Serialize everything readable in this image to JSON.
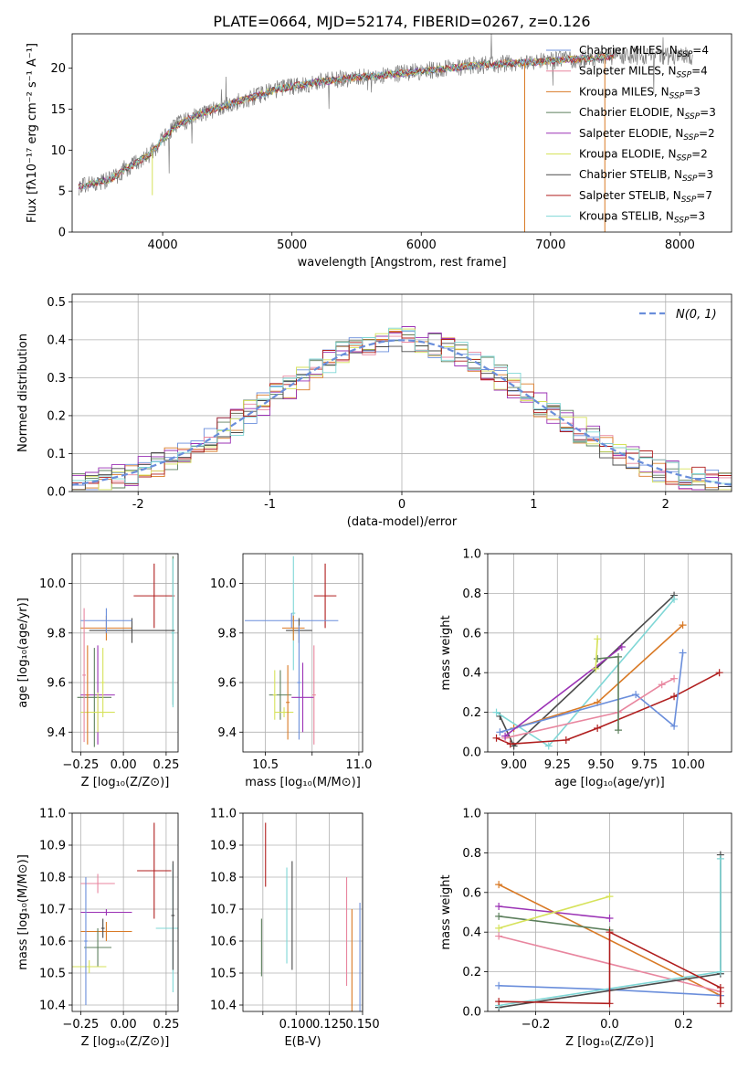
{
  "figure": {
    "title": "PLATE=0664, MJD=52174, FIBERID=0267, z=0.126"
  },
  "chart_data": [
    {
      "id": "spectrum",
      "type": "line",
      "xlabel": "wavelength [Angstrom, rest frame]",
      "ylabel": "Flux [fλ10⁻¹⁷ erg cm⁻² s⁻¹ A⁻¹]",
      "xlim": [
        3300,
        8400
      ],
      "ylim": [
        0,
        24.2
      ],
      "xticks": [
        4000,
        5000,
        6000,
        7000,
        8000
      ],
      "yticks": [
        0,
        5,
        10,
        15,
        20
      ],
      "grid": false,
      "legend_position": "top-right",
      "continuum": {
        "x": [
          3350,
          3600,
          3900,
          4100,
          4300,
          4600,
          4900,
          5200,
          5500,
          5800,
          6100,
          6400,
          6700,
          7000,
          7300,
          7500
        ],
        "y": [
          5.5,
          6.5,
          9.5,
          13.0,
          14.5,
          16.0,
          17.5,
          18.3,
          18.9,
          19.3,
          19.8,
          20.3,
          20.6,
          20.9,
          21.2,
          21.5
        ]
      },
      "series": [
        {
          "name": "Chabrier MILES, N",
          "sub": "SSP",
          "tail": "=4",
          "color": "#6a8edb"
        },
        {
          "name": "Salpeter MILES, N",
          "sub": "SSP",
          "tail": "=4",
          "color": "#e8869f"
        },
        {
          "name": "Kroupa MILES, N",
          "sub": "SSP",
          "tail": "=3",
          "color": "#d97a26"
        },
        {
          "name": "Chabrier ELODIE, N",
          "sub": "SSP",
          "tail": "=3",
          "color": "#5c7f5c"
        },
        {
          "name": "Salpeter ELODIE, N",
          "sub": "SSP",
          "tail": "=2",
          "color": "#9b32b5"
        },
        {
          "name": "Kroupa ELODIE, N",
          "sub": "SSP",
          "tail": "=2",
          "color": "#d6e25a"
        },
        {
          "name": "Chabrier STELIB, N",
          "sub": "SSP",
          "tail": "=3",
          "color": "#4a4a4a"
        },
        {
          "name": "Salpeter STELIB, N",
          "sub": "SSP",
          "tail": "=7",
          "color": "#b01e1e"
        },
        {
          "name": "Kroupa STELIB, N",
          "sub": "SSP",
          "tail": "=3",
          "color": "#7fd7d6"
        }
      ]
    },
    {
      "id": "residuals",
      "type": "step",
      "xlabel": "(data-model)/error",
      "ylabel": "Normed distribution",
      "xlim": [
        -2.5,
        2.5
      ],
      "ylim": [
        0,
        0.52
      ],
      "xticks": [
        -2,
        -1,
        0,
        1,
        2
      ],
      "yticks": [
        0.0,
        0.1,
        0.2,
        0.3,
        0.4,
        0.5
      ],
      "grid": true,
      "legend_position": "top-right",
      "reference_label": "N(0, 1)",
      "reference_color": "#6a8edb"
    },
    {
      "id": "age-vs-Z",
      "type": "scatter",
      "xlabel": "Z [log₁₀(Z/Z⊙)]",
      "ylabel": "age  [log₁₀(age/yr)]",
      "xlim": [
        -0.3,
        0.32
      ],
      "ylim": [
        9.32,
        10.12
      ],
      "xticks": [
        -0.25,
        0,
        0.25
      ],
      "xticklabels": [
        "−0.25",
        "0.00",
        "0.25"
      ],
      "yticks": [
        9.4,
        9.6,
        9.8,
        10.0
      ],
      "grid": true,
      "points": [
        {
          "x": 0.18,
          "y": 9.95,
          "xerr": 0.12,
          "yerr": 0.13,
          "color": "#b01e1e"
        },
        {
          "x": 0.29,
          "y": 9.81,
          "xerr": 0.01,
          "yerr": 0.3,
          "color": "#5c7f5c"
        },
        {
          "x": 0.29,
          "y": 9.8,
          "xerr": 0.01,
          "yerr": 0.3,
          "color": "#7fd7d6"
        },
        {
          "x": -0.1,
          "y": 9.82,
          "xerr": 0.15,
          "yerr": 0.05,
          "color": "#d97a26"
        },
        {
          "x": 0.05,
          "y": 9.81,
          "xerr": 0.25,
          "yerr": 0.05,
          "color": "#4a4a4a"
        },
        {
          "x": -0.1,
          "y": 9.85,
          "xerr": 0.15,
          "yerr": 0.05,
          "color": "#6a8edb"
        },
        {
          "x": -0.15,
          "y": 9.55,
          "xerr": 0.1,
          "yerr": 0.2,
          "color": "#9b32b5"
        },
        {
          "x": -0.17,
          "y": 9.54,
          "xerr": 0.1,
          "yerr": 0.2,
          "color": "#5c7f5c"
        },
        {
          "x": -0.15,
          "y": 9.48,
          "xerr": 0.1,
          "yerr": 0.08,
          "color": "#d6e25a"
        },
        {
          "x": -0.12,
          "y": 9.6,
          "xerr": 0.01,
          "yerr": 0.14,
          "color": "#d6e25a"
        },
        {
          "x": -0.21,
          "y": 9.55,
          "xerr": 0.01,
          "yerr": 0.2,
          "color": "#d97a26"
        },
        {
          "x": -0.23,
          "y": 9.63,
          "xerr": 0.01,
          "yerr": 0.27,
          "color": "#e8869f"
        }
      ]
    },
    {
      "id": "age-vs-mass",
      "type": "scatter",
      "xlabel": "mass [log₁₀(M/M⊙)]",
      "ylabel": "",
      "xlim": [
        10.38,
        11.02
      ],
      "ylim": [
        9.32,
        10.12
      ],
      "xticks": [
        10.5,
        10.75,
        11.0
      ],
      "xticklabels": [
        "10.5",
        "",
        "11.0"
      ],
      "yticks": [
        9.4,
        9.6,
        9.8,
        10.0
      ],
      "grid": true,
      "points": [
        {
          "x": 10.82,
          "y": 9.95,
          "xerr": 0.06,
          "yerr": 0.13,
          "color": "#b01e1e"
        },
        {
          "x": 10.65,
          "y": 9.88,
          "xerr": 0.01,
          "yerr": 0.23,
          "color": "#7fd7d6"
        },
        {
          "x": 10.64,
          "y": 9.85,
          "xerr": 0.25,
          "yerr": 0.03,
          "color": "#6a8edb"
        },
        {
          "x": 10.68,
          "y": 9.81,
          "xerr": 0.07,
          "yerr": 0.05,
          "color": "#4a4a4a"
        },
        {
          "x": 10.65,
          "y": 9.82,
          "xerr": 0.06,
          "yerr": 0.05,
          "color": "#d97a26"
        },
        {
          "x": 10.68,
          "y": 9.6,
          "xerr": 0.01,
          "yerr": 0.23,
          "color": "#6a8edb"
        },
        {
          "x": 10.58,
          "y": 9.55,
          "xerr": 0.06,
          "yerr": 0.1,
          "color": "#5c7f5c"
        },
        {
          "x": 10.7,
          "y": 9.54,
          "xerr": 0.06,
          "yerr": 0.14,
          "color": "#9b32b5"
        },
        {
          "x": 10.76,
          "y": 9.55,
          "xerr": 0.01,
          "yerr": 0.2,
          "color": "#e8869f"
        },
        {
          "x": 10.6,
          "y": 9.48,
          "xerr": 0.05,
          "yerr": 0.02,
          "color": "#d6e25a"
        },
        {
          "x": 10.62,
          "y": 9.52,
          "xerr": 0.01,
          "yerr": 0.15,
          "color": "#d97a26"
        },
        {
          "x": 10.55,
          "y": 9.55,
          "xerr": 0.01,
          "yerr": 0.1,
          "color": "#d6e25a"
        }
      ]
    },
    {
      "id": "weight-vs-age",
      "type": "line",
      "xlabel": "age  [log₁₀(age/yr)]",
      "ylabel": "mass weight",
      "xlim": [
        8.85,
        10.25
      ],
      "ylim": [
        0,
        1
      ],
      "xticks": [
        9.0,
        9.25,
        9.5,
        9.75,
        10.0
      ],
      "xticklabels": [
        "9.00",
        "9.25",
        "9.50",
        "9.75",
        "10.00"
      ],
      "yticks": [
        0.0,
        0.2,
        0.4,
        0.6,
        0.8,
        1.0
      ],
      "grid": true,
      "series": [
        {
          "color": "#4a4a4a",
          "points": [
            [
              8.92,
              0.18
            ],
            [
              9.0,
              0.03
            ],
            [
              9.92,
              0.79
            ]
          ]
        },
        {
          "color": "#7fd7d6",
          "points": [
            [
              8.9,
              0.2
            ],
            [
              9.2,
              0.03
            ],
            [
              9.92,
              0.77
            ]
          ]
        },
        {
          "color": "#d97a26",
          "points": [
            [
              9.0,
              0.12
            ],
            [
              9.48,
              0.25
            ],
            [
              9.97,
              0.64
            ]
          ]
        },
        {
          "color": "#b01e1e",
          "points": [
            [
              8.9,
              0.07
            ],
            [
              8.98,
              0.04
            ],
            [
              9.3,
              0.06
            ],
            [
              9.48,
              0.12
            ],
            [
              9.92,
              0.28
            ],
            [
              10.18,
              0.4
            ]
          ]
        },
        {
          "color": "#6a8edb",
          "points": [
            [
              8.92,
              0.1
            ],
            [
              9.7,
              0.29
            ],
            [
              9.92,
              0.13
            ],
            [
              9.97,
              0.5
            ]
          ]
        },
        {
          "color": "#e8869f",
          "points": [
            [
              8.95,
              0.07
            ],
            [
              9.6,
              0.2
            ],
            [
              9.85,
              0.34
            ],
            [
              9.92,
              0.37
            ]
          ]
        },
        {
          "color": "#9b32b5",
          "points": [
            [
              8.95,
              0.08
            ],
            [
              9.62,
              0.53
            ]
          ]
        },
        {
          "color": "#5c7f5c",
          "points": [
            [
              9.48,
              0.47
            ],
            [
              9.6,
              0.48
            ],
            [
              9.6,
              0.11
            ]
          ]
        },
        {
          "color": "#d6e25a",
          "points": [
            [
              9.47,
              0.42
            ],
            [
              9.48,
              0.57
            ]
          ]
        }
      ]
    },
    {
      "id": "mass-vs-Z",
      "type": "scatter",
      "xlabel": "Z [log₁₀(Z/Z⊙)]",
      "ylabel": "mass [log₁₀(M/M⊙)]",
      "xlim": [
        -0.3,
        0.32
      ],
      "ylim": [
        10.38,
        11.0
      ],
      "xticks": [
        -0.25,
        0,
        0.25
      ],
      "xticklabels": [
        "−0.25",
        "0.00",
        "0.25"
      ],
      "yticks": [
        10.4,
        10.5,
        10.6,
        10.7,
        10.8,
        10.9,
        11.0
      ],
      "grid": true,
      "points": [
        {
          "x": 0.18,
          "y": 10.82,
          "xerr": 0.1,
          "yerr": 0.15,
          "color": "#b01e1e"
        },
        {
          "x": 0.29,
          "y": 10.64,
          "xerr": 0.1,
          "yerr": 0.2,
          "color": "#7fd7d6"
        },
        {
          "x": 0.29,
          "y": 10.68,
          "xerr": 0.01,
          "yerr": 0.17,
          "color": "#4a4a4a"
        },
        {
          "x": -0.15,
          "y": 10.78,
          "xerr": 0.1,
          "yerr": 0.03,
          "color": "#e8869f"
        },
        {
          "x": -0.1,
          "y": 10.69,
          "xerr": 0.15,
          "yerr": 0.01,
          "color": "#9b32b5"
        },
        {
          "x": -0.1,
          "y": 10.63,
          "xerr": 0.15,
          "yerr": 0.03,
          "color": "#d97a26"
        },
        {
          "x": -0.15,
          "y": 10.58,
          "xerr": 0.08,
          "yerr": 0.06,
          "color": "#5c7f5c"
        },
        {
          "x": -0.2,
          "y": 10.52,
          "xerr": 0.1,
          "yerr": 0.02,
          "color": "#d6e25a"
        },
        {
          "x": -0.22,
          "y": 10.6,
          "xerr": 0.01,
          "yerr": 0.2,
          "color": "#6a8edb"
        },
        {
          "x": -0.12,
          "y": 10.64,
          "xerr": 0.01,
          "yerr": 0.03,
          "color": "#4a4a4a"
        }
      ]
    },
    {
      "id": "mass-vs-ebv",
      "type": "scatter",
      "xlabel": "E(B-V)",
      "ylabel": "",
      "xlim": [
        0.06,
        0.15
      ],
      "ylim": [
        10.38,
        11.0
      ],
      "xticks": [
        0.075,
        0.1,
        0.125,
        0.15
      ],
      "xticklabels": [
        "",
        "0.100",
        "0.125",
        "0.150"
      ],
      "yticks": [
        10.4,
        10.5,
        10.6,
        10.7,
        10.8,
        10.9,
        11.0
      ],
      "grid": true,
      "points": [
        {
          "x": 0.077,
          "y": 10.87,
          "xerr": 0,
          "yerr": 0.1,
          "color": "#b01e1e"
        },
        {
          "x": 0.074,
          "y": 10.58,
          "xerr": 0,
          "yerr": 0.09,
          "color": "#5c7f5c"
        },
        {
          "x": 0.093,
          "y": 10.68,
          "xerr": 0,
          "yerr": 0.15,
          "color": "#7fd7d6"
        },
        {
          "x": 0.097,
          "y": 10.68,
          "xerr": 0,
          "yerr": 0.17,
          "color": "#4a4a4a"
        },
        {
          "x": 0.138,
          "y": 10.63,
          "xerr": 0,
          "yerr": 0.17,
          "color": "#e8869f"
        },
        {
          "x": 0.142,
          "y": 10.53,
          "xerr": 0,
          "yerr": 0.17,
          "color": "#d97a26"
        },
        {
          "x": 0.148,
          "y": 10.55,
          "xerr": 0,
          "yerr": 0.17,
          "color": "#6a8edb"
        }
      ]
    },
    {
      "id": "weight-vs-Z",
      "type": "line",
      "xlabel": "Z [log₁₀(Z/Z⊙)]",
      "ylabel": "mass weight",
      "xlim": [
        -0.33,
        0.33
      ],
      "ylim": [
        0,
        1
      ],
      "xticks": [
        -0.2,
        0.0,
        0.2
      ],
      "xticklabels": [
        "−0.2",
        "0.0",
        "0.2"
      ],
      "yticks": [
        0.0,
        0.2,
        0.4,
        0.6,
        0.8,
        1.0
      ],
      "grid": true,
      "series": [
        {
          "color": "#d97a26",
          "points": [
            [
              -0.3,
              0.64
            ],
            [
              0.3,
              0.08
            ]
          ]
        },
        {
          "color": "#9b32b5",
          "points": [
            [
              -0.3,
              0.53
            ],
            [
              0.0,
              0.47
            ]
          ]
        },
        {
          "color": "#5c7f5c",
          "points": [
            [
              -0.3,
              0.48
            ],
            [
              0.0,
              0.41
            ]
          ]
        },
        {
          "color": "#d6e25a",
          "points": [
            [
              -0.3,
              0.42
            ],
            [
              0.0,
              0.58
            ]
          ]
        },
        {
          "color": "#e8869f",
          "points": [
            [
              -0.3,
              0.38
            ],
            [
              0.3,
              0.1
            ]
          ]
        },
        {
          "color": "#6a8edb",
          "points": [
            [
              -0.3,
              0.13
            ],
            [
              0.0,
              0.11
            ],
            [
              0.3,
              0.08
            ]
          ]
        },
        {
          "color": "#4a4a4a",
          "points": [
            [
              -0.3,
              0.02
            ],
            [
              0.3,
              0.19
            ],
            [
              0.3,
              0.79
            ]
          ]
        },
        {
          "color": "#7fd7d6",
          "points": [
            [
              -0.3,
              0.03
            ],
            [
              0.3,
              0.2
            ],
            [
              0.3,
              0.77
            ]
          ]
        },
        {
          "color": "#b01e1e",
          "points": [
            [
              -0.3,
              0.05
            ],
            [
              0.0,
              0.04
            ],
            [
              0.0,
              0.4
            ],
            [
              0.3,
              0.12
            ],
            [
              0.3,
              0.04
            ]
          ]
        }
      ]
    }
  ]
}
